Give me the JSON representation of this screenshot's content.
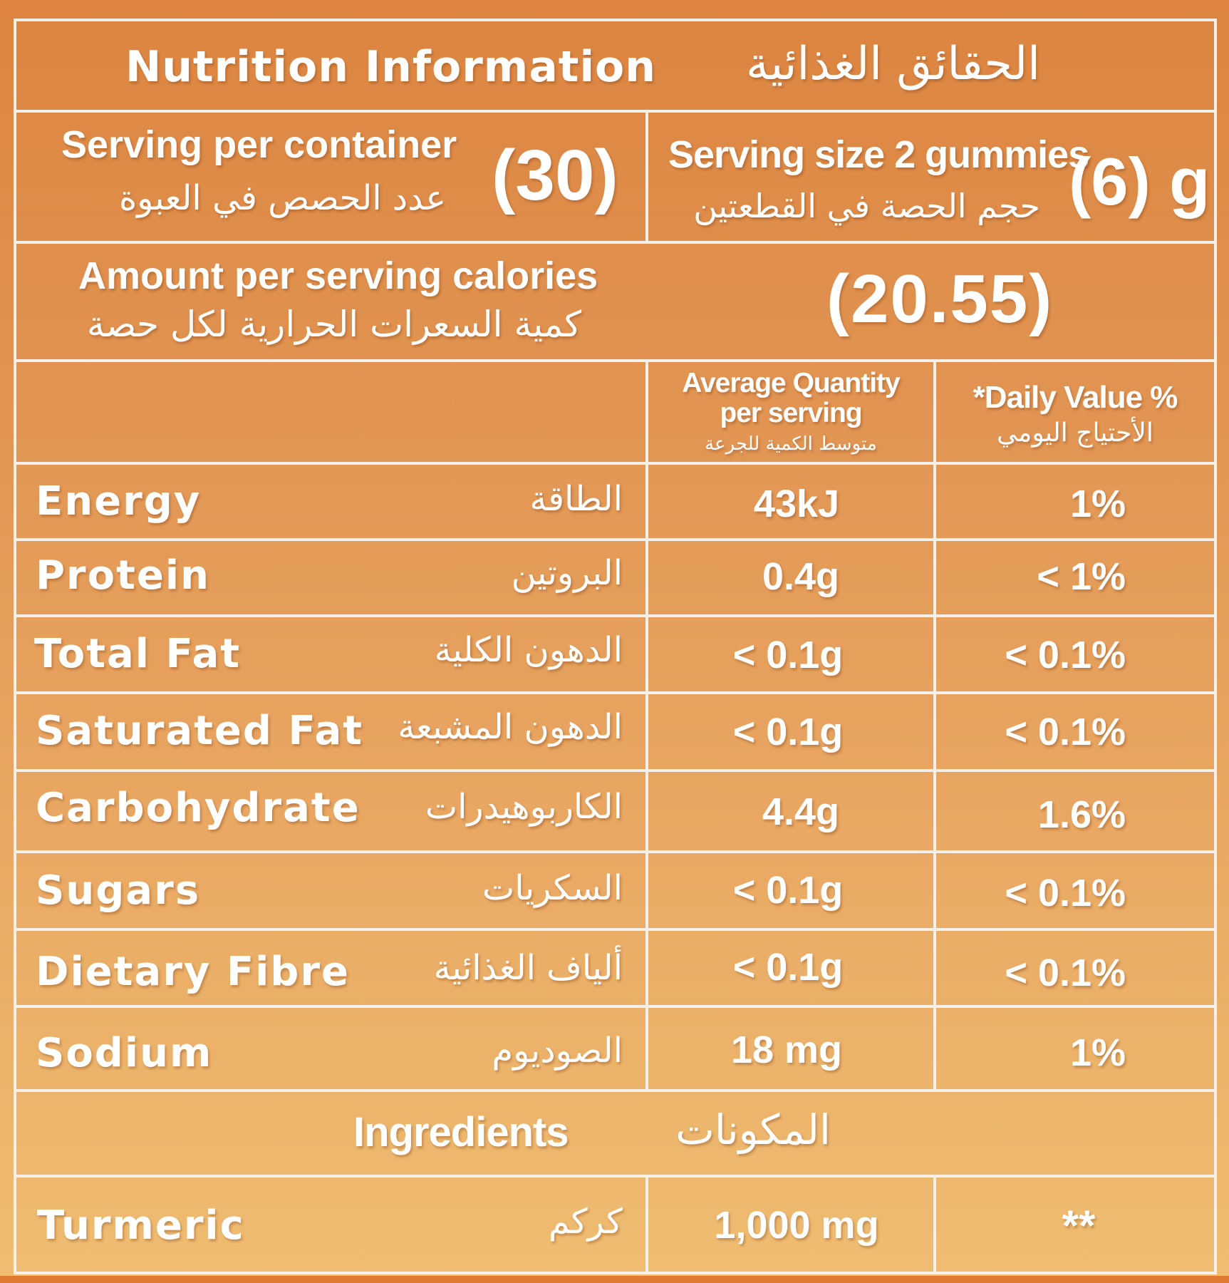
{
  "header": {
    "title_en": "Nutrition Information",
    "title_ar": "الحقائق الغذائية"
  },
  "servings": {
    "per_container_en": "Serving per container",
    "per_container_ar": "عدد الحصص في العبوة",
    "per_container_value": "(30)",
    "size_en": "Serving size 2 gummies",
    "size_ar": "حجم الحصة في القطعتين",
    "size_value": "(6) g"
  },
  "calories": {
    "label_en": "Amount per serving calories",
    "label_ar": "كمية السعرات الحرارية لكل حصة",
    "value": "(20.55)"
  },
  "columns": {
    "avg_qty_line1": "Average Quantity",
    "avg_qty_line2": "per serving",
    "avg_qty_ar": "متوسط الكمية للجرعة",
    "daily_value_en": "*Daily Value %",
    "daily_value_ar": "الأحتياج اليومي"
  },
  "rows": [
    {
      "name_en": "Energy",
      "name_ar": "الطاقة",
      "qty": "43kJ",
      "dv": "1%"
    },
    {
      "name_en": "Protein",
      "name_ar": "البروتين",
      "qty": "0.4g",
      "dv": "< 1%"
    },
    {
      "name_en": "Total Fat",
      "name_ar": "الدهون الكلية",
      "qty": "< 0.1g",
      "dv": "< 0.1%"
    },
    {
      "name_en": "Saturated Fat",
      "name_ar": "الدهون المشبعة",
      "qty": "< 0.1g",
      "dv": "< 0.1%"
    },
    {
      "name_en": "Carbohydrate",
      "name_ar": "الكاربوهيدرات",
      "qty": "4.4g",
      "dv": "1.6%"
    },
    {
      "name_en": "Sugars",
      "name_ar": "السكريات",
      "qty": "< 0.1g",
      "dv": "< 0.1%"
    },
    {
      "name_en": "Dietary Fibre",
      "name_ar": "ألياف الغذائية",
      "qty": "< 0.1g",
      "dv": "< 0.1%"
    },
    {
      "name_en": "Sodium",
      "name_ar": "الصوديوم",
      "qty": "18 mg",
      "dv": "1%"
    }
  ],
  "ingredients": {
    "label_en": "Ingredients",
    "label_ar": "المكونات",
    "items": [
      {
        "name_en": "Turmeric",
        "name_ar": "كركم",
        "qty": "1,000 mg",
        "dv": "**"
      }
    ]
  }
}
